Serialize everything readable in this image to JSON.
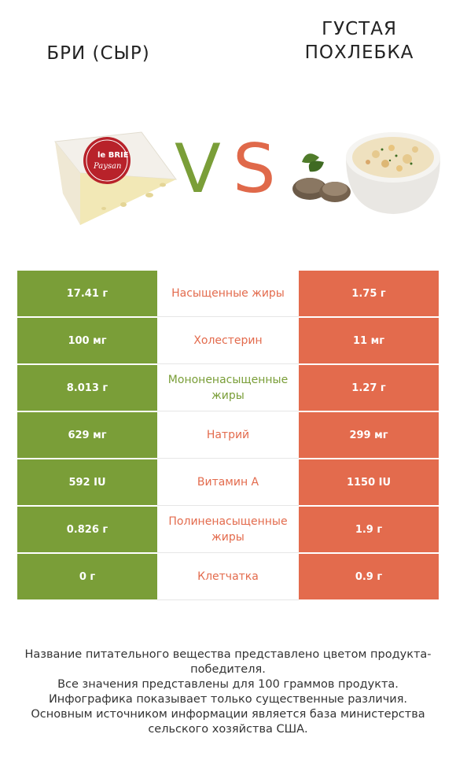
{
  "header": {
    "left_title": "БРИ (СЫР)",
    "right_title": "ГУСТАЯ ПОХЛЕБКА",
    "vs_v": "V",
    "vs_s": "S",
    "cheese_label_line1": "le BRIE",
    "cheese_label_line2": "Paysan"
  },
  "colors": {
    "winner_left": "#7a9e38",
    "winner_right": "#e36b4d"
  },
  "rows": [
    {
      "left": "17.41 г",
      "name": "Насыщенные жиры",
      "right": "1.75 г",
      "winner": "right"
    },
    {
      "left": "100 мг",
      "name": "Холестерин",
      "right": "11 мг",
      "winner": "right"
    },
    {
      "left": "8.013 г",
      "name": "Мононенасыщенные жиры",
      "right": "1.27 г",
      "winner": "left"
    },
    {
      "left": "629 мг",
      "name": "Натрий",
      "right": "299 мг",
      "winner": "right"
    },
    {
      "left": "592 IU",
      "name": "Витамин A",
      "right": "1150 IU",
      "winner": "right"
    },
    {
      "left": "0.826 г",
      "name": "Полиненасыщенные жиры",
      "right": "1.9 г",
      "winner": "right"
    },
    {
      "left": "0 г",
      "name": "Клетчатка",
      "right": "0.9 г",
      "winner": "right"
    }
  ],
  "footer": {
    "line1": "Название питательного вещества представлено цветом продукта-победителя.",
    "line2": "Все значения представлены для 100 граммов продукта.",
    "line3": "Инфографика показывает только существенные различия.",
    "line4": "Основным источником информации является база министерства сельского хозяйства США."
  }
}
